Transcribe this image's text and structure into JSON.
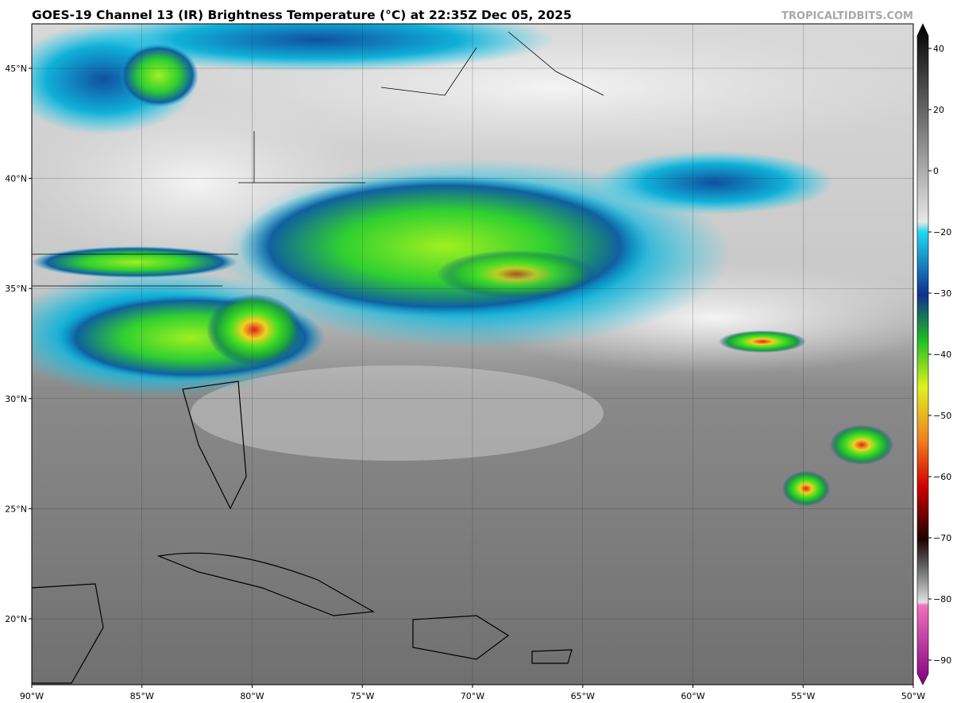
{
  "title": "GOES-19 Channel 13 (IR) Brightness Temperature (°C) at 22:35Z Dec 05, 2025",
  "source": "TROPICALTIDBITS.COM",
  "map": {
    "lon_labels": [
      "90°W",
      "85°W",
      "80°W",
      "75°W",
      "70°W",
      "65°W",
      "60°W",
      "55°W",
      "50°W"
    ],
    "lat_labels": [
      "45°N",
      "40°N",
      "35°N",
      "30°N",
      "25°N",
      "20°N"
    ]
  },
  "colorbar": {
    "labels": [
      "40",
      "20",
      "0",
      "−20",
      "−30",
      "−40",
      "−50",
      "−60",
      "−70",
      "−80",
      "−90"
    ]
  }
}
